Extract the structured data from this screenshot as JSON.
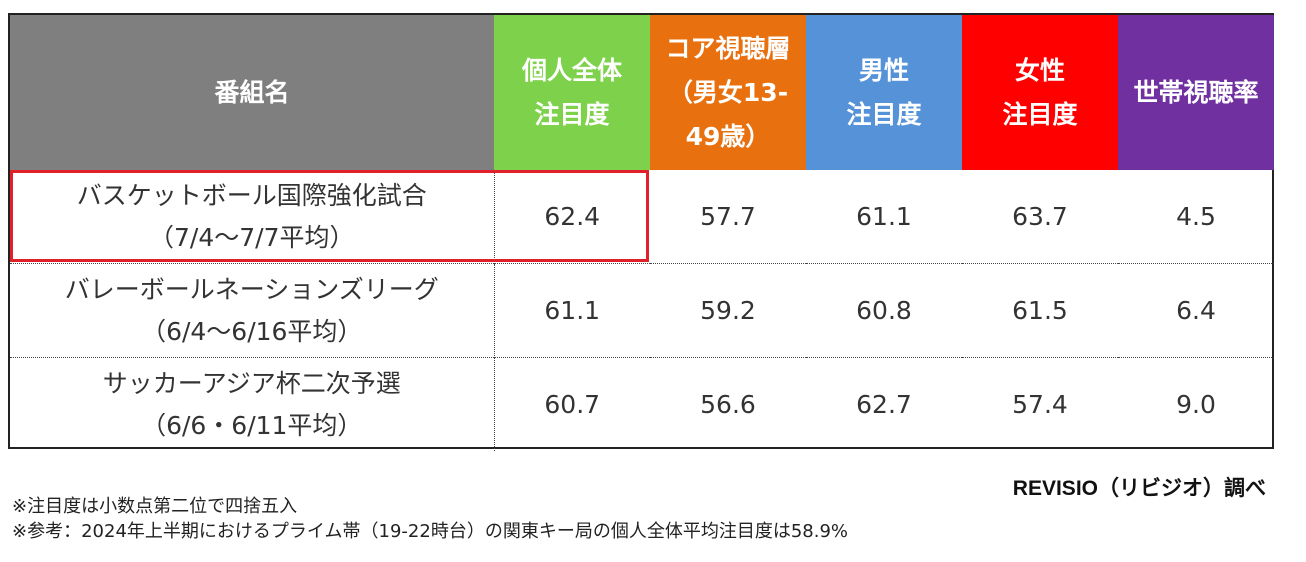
{
  "chart_data": {
    "type": "table",
    "columns": [
      {
        "label": "番組名",
        "color": "#7f7f7f"
      },
      {
        "label": "個人全体\n注目度",
        "color": "#7ed14a"
      },
      {
        "label": "コア視聴層\n（男女13-\n49歳）",
        "color": "#e8700e"
      },
      {
        "label": "男性\n注目度",
        "color": "#5592d8"
      },
      {
        "label": "女性\n注目度",
        "color": "#ff0000"
      },
      {
        "label": "世帯視聴率",
        "color": "#7030a0"
      }
    ],
    "rows": [
      {
        "name_line1": "バスケットボール国際強化試合",
        "name_line2": "（7/4～7/7平均）",
        "values": [
          "62.4",
          "57.7",
          "61.1",
          "63.7",
          "4.5"
        ],
        "highlight": true
      },
      {
        "name_line1": "バレーボールネーションズリーグ",
        "name_line2": "（6/4～6/16平均）",
        "values": [
          "61.1",
          "59.2",
          "60.8",
          "61.5",
          "6.4"
        ],
        "highlight": false
      },
      {
        "name_line1": "サッカーアジア杯二次予選",
        "name_line2": "（6/6・6/11平均）",
        "values": [
          "60.7",
          "56.6",
          "62.7",
          "57.4",
          "9.0"
        ],
        "highlight": false
      }
    ],
    "highlight_color": "#e0202a"
  },
  "source": "REVISIO（リビジオ）調べ",
  "footnotes": [
    "※注目度は小数点第二位で四捨五入",
    "※参考：2024年上半期におけるプライム帯（19-22時台）の関東キー局の個人全体平均注目度は58.9%"
  ]
}
